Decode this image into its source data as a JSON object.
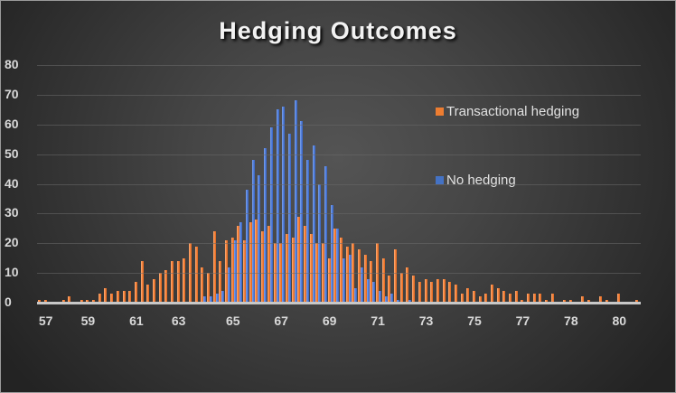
{
  "chart_data": {
    "type": "bar",
    "title": "Hedging Outcomes",
    "xlabel": "",
    "ylabel": "",
    "ylim": [
      0,
      80
    ],
    "yticks": [
      0,
      10,
      20,
      30,
      40,
      50,
      60,
      70,
      80
    ],
    "grid": true,
    "legend_position": "upper-right inside plot",
    "xtick_labels": [
      {
        "label": "57",
        "bin": 1
      },
      {
        "label": "59",
        "bin": 8
      },
      {
        "label": "61",
        "bin": 16
      },
      {
        "label": "63",
        "bin": 23
      },
      {
        "label": "65",
        "bin": 32
      },
      {
        "label": "67",
        "bin": 40
      },
      {
        "label": "69",
        "bin": 48
      },
      {
        "label": "71",
        "bin": 56
      },
      {
        "label": "73",
        "bin": 64
      },
      {
        "label": "75",
        "bin": 72
      },
      {
        "label": "77",
        "bin": 80
      },
      {
        "label": "78",
        "bin": 88
      },
      {
        "label": "80",
        "bin": 96
      }
    ],
    "series": [
      {
        "name": "Transactional hedging",
        "color": "#ED7D31",
        "values": [
          1,
          1,
          0,
          0,
          1,
          2,
          0,
          1,
          1,
          1,
          3,
          5,
          3,
          4,
          4,
          4,
          7,
          14,
          6,
          8,
          10,
          11,
          14,
          14,
          15,
          20,
          19,
          12,
          10,
          24,
          14,
          21,
          22,
          26,
          21,
          27,
          28,
          24,
          26,
          20,
          20,
          23,
          22,
          29,
          26,
          23,
          20,
          20,
          15,
          25,
          22,
          19,
          20,
          18,
          16,
          14,
          20,
          15,
          9,
          18,
          10,
          12,
          9,
          7,
          8,
          7,
          8,
          8,
          7,
          6,
          3,
          5,
          4,
          2,
          3,
          6,
          5,
          4,
          3,
          4,
          1,
          3,
          3,
          3,
          1,
          3,
          0,
          1,
          1,
          0,
          2,
          1,
          0,
          2,
          1,
          0,
          3,
          0,
          0,
          1
        ],
        "bin_count": 100
      },
      {
        "name": "No hedging",
        "color": "#4472C4",
        "values": [
          0,
          0,
          0,
          0,
          0,
          0,
          0,
          0,
          0,
          0,
          0,
          0,
          0,
          0,
          0,
          0,
          0,
          0,
          0,
          0,
          0,
          0,
          0,
          0,
          0,
          0,
          0,
          2,
          2,
          3,
          4,
          12,
          21,
          27,
          38,
          48,
          43,
          52,
          59,
          65,
          66,
          57,
          68,
          61,
          48,
          53,
          40,
          46,
          33,
          25,
          15,
          16,
          5,
          12,
          8,
          7,
          4,
          2,
          3,
          1,
          0,
          1,
          0,
          0,
          0,
          0,
          0,
          0,
          0,
          0,
          0,
          0,
          0,
          0,
          0,
          0,
          0,
          0,
          0,
          0,
          0,
          0,
          0,
          0,
          0,
          0,
          0,
          0,
          0,
          0,
          0,
          0,
          0,
          0,
          0,
          0,
          0,
          0,
          0,
          0
        ],
        "bin_count": 100
      }
    ]
  },
  "legend": {
    "items": [
      {
        "label": "Transactional hedging",
        "color": "#ED7D31"
      },
      {
        "label": "No hedging",
        "color": "#4472C4"
      }
    ]
  }
}
